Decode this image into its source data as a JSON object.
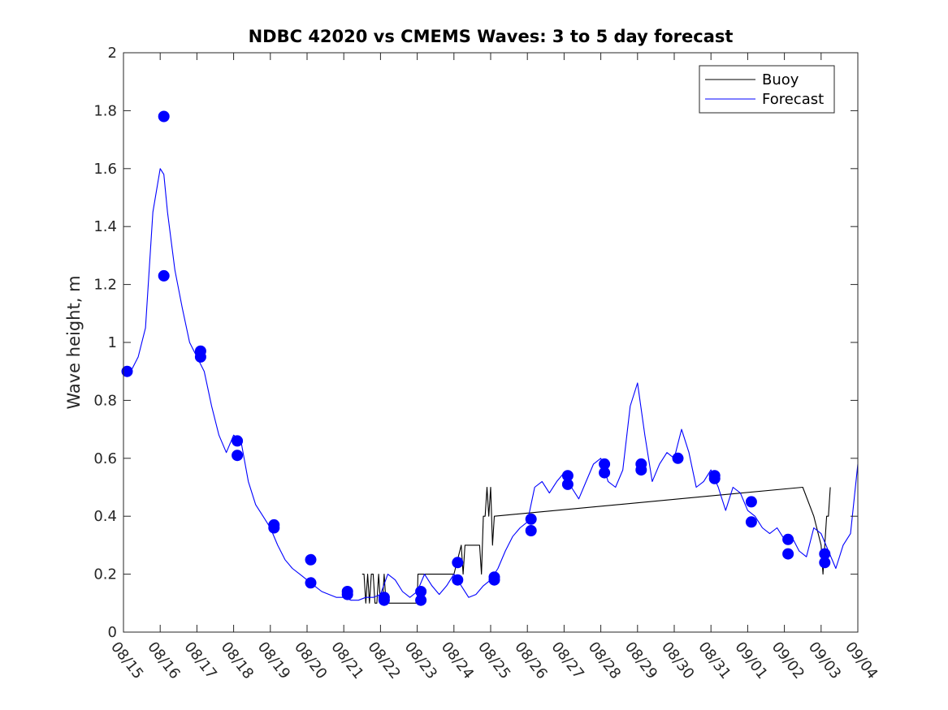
{
  "chart_data": {
    "type": "line",
    "title": "NDBC 42020 vs CMEMS Waves: 3 to 5 day forecast",
    "xlabel": "",
    "ylabel": "Wave height, m",
    "ylim": [
      0,
      2
    ],
    "xlim": [
      0,
      20
    ],
    "yticks": [
      0,
      0.2,
      0.4,
      0.6,
      0.8,
      1,
      1.2,
      1.4,
      1.6,
      1.8,
      2
    ],
    "ytick_labels": [
      "0",
      "0.2",
      "0.4",
      "0.6",
      "0.8",
      "1",
      "1.2",
      "1.4",
      "1.6",
      "1.8",
      "2"
    ],
    "x_tick_labels": [
      "08/15",
      "08/16",
      "08/17",
      "08/18",
      "08/19",
      "08/20",
      "08/21",
      "08/22",
      "08/23",
      "08/24",
      "08/25",
      "08/26",
      "08/27",
      "08/28",
      "08/29",
      "08/30",
      "08/31",
      "09/01",
      "09/02",
      "09/03",
      "09/04"
    ],
    "x_units": "days since 08/15",
    "legend": {
      "position": "top-right",
      "entries": [
        {
          "label": "Buoy",
          "color": "#000000"
        },
        {
          "label": "Forecast",
          "color": "#0000ff"
        }
      ]
    },
    "colors": {
      "buoy": "#000000",
      "forecast": "#0000ff"
    },
    "series": [
      {
        "name": "Buoy",
        "x": [
          6.5,
          6.55,
          6.6,
          6.65,
          6.7,
          6.75,
          6.8,
          6.85,
          6.9,
          6.95,
          7.0,
          7.05,
          7.1,
          7.15,
          7.2,
          7.25,
          7.3,
          7.35,
          7.5,
          7.75,
          8.0,
          8.02,
          8.05,
          8.1,
          8.25,
          8.5,
          8.75,
          9.0,
          9.2,
          9.25,
          9.3,
          9.35,
          9.4,
          9.45,
          9.5,
          9.55,
          9.6,
          9.65,
          9.7,
          9.75,
          9.8,
          9.85,
          9.9,
          9.95,
          10.0,
          10.05,
          10.1,
          18.5,
          18.8,
          19.0,
          19.05,
          19.1,
          19.15,
          19.2,
          19.25
        ],
        "y": [
          0.2,
          0.2,
          0.1,
          0.2,
          0.1,
          0.2,
          0.2,
          0.1,
          0.1,
          0.2,
          0.1,
          0.1,
          0.2,
          0.1,
          0.1,
          0.1,
          0.1,
          0.1,
          0.1,
          0.1,
          0.1,
          0.2,
          0.2,
          0.2,
          0.2,
          0.2,
          0.2,
          0.2,
          0.3,
          0.2,
          0.3,
          0.3,
          0.3,
          0.3,
          0.3,
          0.3,
          0.3,
          0.3,
          0.3,
          0.2,
          0.4,
          0.4,
          0.5,
          0.4,
          0.5,
          0.3,
          0.4,
          0.5,
          0.4,
          0.3,
          0.2,
          0.3,
          0.4,
          0.4,
          0.5
        ]
      },
      {
        "name": "Forecast",
        "x": [
          0.0,
          0.2,
          0.4,
          0.6,
          0.8,
          1.0,
          1.1,
          1.2,
          1.4,
          1.6,
          1.8,
          2.0,
          2.2,
          2.4,
          2.6,
          2.8,
          3.0,
          3.2,
          3.4,
          3.6,
          3.8,
          4.0,
          4.2,
          4.4,
          4.6,
          4.8,
          5.0,
          5.2,
          5.4,
          5.6,
          5.8,
          6.0,
          6.2,
          6.4,
          6.6,
          6.8,
          7.0,
          7.2,
          7.4,
          7.6,
          7.8,
          8.0,
          8.2,
          8.4,
          8.6,
          8.8,
          9.0,
          9.2,
          9.4,
          9.6,
          9.8,
          10.0,
          10.2,
          10.4,
          10.6,
          10.8,
          11.0,
          11.2,
          11.4,
          11.6,
          11.8,
          12.0,
          12.2,
          12.4,
          12.6,
          12.8,
          13.0,
          13.2,
          13.4,
          13.6,
          13.8,
          14.0,
          14.2,
          14.4,
          14.6,
          14.8,
          15.0,
          15.2,
          15.4,
          15.6,
          15.8,
          16.0,
          16.2,
          16.4,
          16.6,
          16.8,
          17.0,
          17.2,
          17.4,
          17.6,
          17.8,
          18.0,
          18.2,
          18.4,
          18.6,
          18.8,
          19.0,
          19.2,
          19.4,
          19.6,
          19.8,
          20.0
        ],
        "y": [
          0.9,
          0.9,
          0.95,
          1.05,
          1.45,
          1.6,
          1.58,
          1.45,
          1.25,
          1.12,
          1.0,
          0.95,
          0.9,
          0.78,
          0.68,
          0.62,
          0.68,
          0.66,
          0.52,
          0.44,
          0.4,
          0.36,
          0.3,
          0.25,
          0.22,
          0.2,
          0.18,
          0.16,
          0.14,
          0.13,
          0.12,
          0.12,
          0.11,
          0.11,
          0.12,
          0.12,
          0.13,
          0.2,
          0.18,
          0.14,
          0.12,
          0.14,
          0.2,
          0.16,
          0.13,
          0.16,
          0.2,
          0.16,
          0.12,
          0.13,
          0.16,
          0.18,
          0.22,
          0.28,
          0.33,
          0.36,
          0.38,
          0.5,
          0.52,
          0.48,
          0.52,
          0.55,
          0.5,
          0.46,
          0.52,
          0.58,
          0.6,
          0.52,
          0.5,
          0.56,
          0.78,
          0.86,
          0.68,
          0.52,
          0.58,
          0.62,
          0.6,
          0.7,
          0.62,
          0.5,
          0.52,
          0.56,
          0.5,
          0.42,
          0.5,
          0.48,
          0.42,
          0.4,
          0.36,
          0.34,
          0.36,
          0.32,
          0.33,
          0.28,
          0.26,
          0.36,
          0.34,
          0.28,
          0.22,
          0.3,
          0.34,
          0.58
        ]
      },
      {
        "name": "Forecast markers",
        "x": [
          0.1,
          1.1,
          1.1,
          2.1,
          2.1,
          3.1,
          3.1,
          4.1,
          4.1,
          5.1,
          5.1,
          6.1,
          6.1,
          7.1,
          7.1,
          8.1,
          8.1,
          9.1,
          9.1,
          10.1,
          10.1,
          11.1,
          11.1,
          12.1,
          12.1,
          13.1,
          13.1,
          14.1,
          14.1,
          15.1,
          16.1,
          16.1,
          17.1,
          17.1,
          18.1,
          18.1,
          19.1,
          19.1
        ],
        "y": [
          0.9,
          1.78,
          1.23,
          0.97,
          0.95,
          0.66,
          0.61,
          0.37,
          0.36,
          0.25,
          0.17,
          0.14,
          0.13,
          0.12,
          0.11,
          0.14,
          0.11,
          0.24,
          0.18,
          0.19,
          0.18,
          0.39,
          0.35,
          0.54,
          0.51,
          0.58,
          0.55,
          0.58,
          0.56,
          0.6,
          0.54,
          0.53,
          0.45,
          0.38,
          0.32,
          0.27,
          0.27,
          0.24
        ]
      }
    ]
  }
}
